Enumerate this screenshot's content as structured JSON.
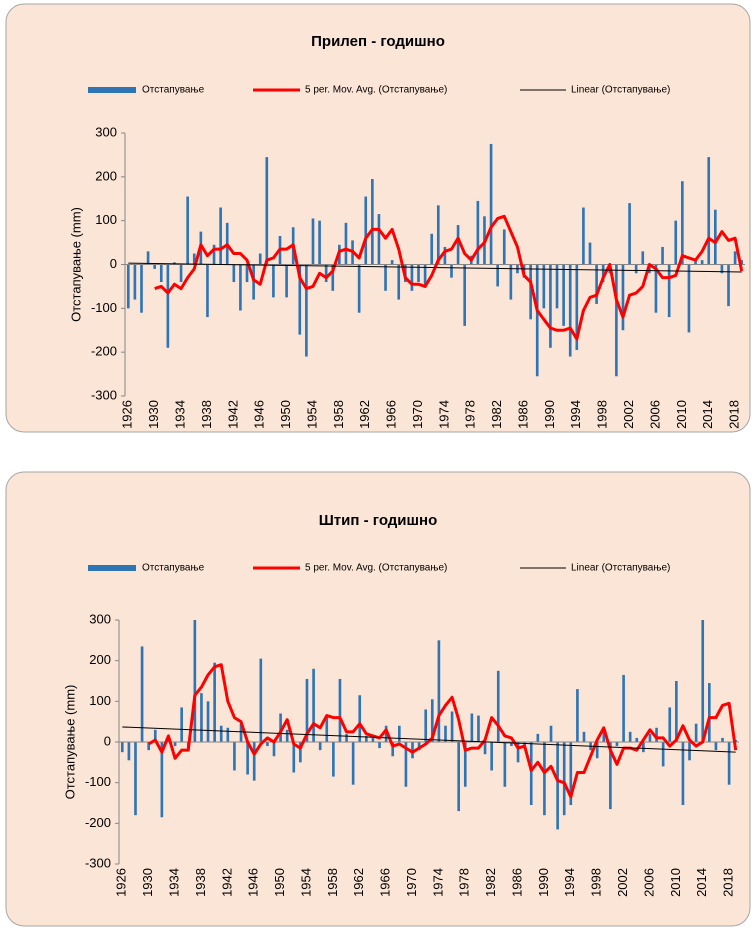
{
  "chart_data": [
    {
      "type": "combo",
      "title": "Прилеп - годишно",
      "y_label": "Отстапување (mm)",
      "categories": [
        "1926",
        null,
        null,
        null,
        "1930",
        null,
        null,
        null,
        "1934",
        null,
        null,
        null,
        "1938",
        null,
        null,
        null,
        "1942",
        null,
        null,
        null,
        "1946",
        null,
        null,
        null,
        "1950",
        null,
        null,
        null,
        "1954",
        null,
        null,
        null,
        "1958",
        null,
        null,
        null,
        "1962",
        null,
        null,
        null,
        "1966",
        null,
        null,
        null,
        "1970",
        null,
        null,
        null,
        "1974",
        null,
        null,
        null,
        "1978",
        null,
        null,
        null,
        "1982",
        null,
        null,
        null,
        "1986",
        null,
        null,
        null,
        "1990",
        null,
        null,
        null,
        "1994",
        null,
        null,
        null,
        "1998",
        null,
        null,
        null,
        "2002",
        null,
        null,
        null,
        "2006",
        null,
        null,
        null,
        "2010",
        null,
        null,
        null,
        "2014",
        null,
        null,
        null,
        "2018",
        null
      ],
      "ylim": [
        -300,
        300
      ],
      "yticks": [
        -300,
        -200,
        -100,
        0,
        100,
        200,
        300
      ],
      "series": [
        {
          "name": "Отстапување",
          "type": "bar",
          "color": "#2e75b6",
          "values": [
            -100,
            -80,
            -110,
            30,
            -10,
            -40,
            -190,
            5,
            -40,
            155,
            25,
            75,
            -120,
            45,
            130,
            95,
            -40,
            -105,
            -40,
            -80,
            25,
            245,
            -75,
            65,
            -75,
            85,
            -160,
            -210,
            105,
            100,
            -40,
            -60,
            45,
            95,
            55,
            -110,
            155,
            195,
            115,
            -60,
            10,
            -80,
            -40,
            -60,
            -40,
            -50,
            70,
            135,
            40,
            -30,
            90,
            -140,
            20,
            145,
            110,
            275,
            -50,
            80,
            -80,
            -20,
            -30,
            -125,
            -255,
            -100,
            -190,
            -100,
            -140,
            -210,
            -195,
            130,
            50,
            -90,
            -40,
            -20,
            -255,
            -150,
            140,
            -20,
            30,
            -20,
            -110,
            40,
            -120,
            100,
            190,
            -155,
            10,
            10,
            245,
            125,
            -20,
            -95,
            30,
            10
          ]
        },
        {
          "name": "5 per. Mov. Avg. (Отстапување)",
          "type": "line",
          "color": "#ff0000",
          "values": [
            null,
            null,
            null,
            null,
            -55,
            -50,
            -65,
            -45,
            -55,
            -30,
            -10,
            45,
            20,
            35,
            35,
            45,
            25,
            25,
            10,
            -35,
            -45,
            10,
            15,
            35,
            35,
            45,
            -30,
            -55,
            -50,
            -20,
            -30,
            -15,
            30,
            35,
            30,
            15,
            60,
            80,
            80,
            60,
            80,
            35,
            -30,
            -45,
            -45,
            -50,
            -25,
            10,
            30,
            35,
            60,
            25,
            10,
            35,
            50,
            85,
            105,
            110,
            75,
            40,
            -25,
            -40,
            -105,
            -125,
            -145,
            -150,
            -150,
            -145,
            -170,
            -105,
            -75,
            -70,
            -30,
            0,
            -80,
            -120,
            -70,
            -65,
            -50,
            0,
            -10,
            -30,
            -30,
            -25,
            20,
            15,
            10,
            30,
            60,
            50,
            75,
            55,
            60,
            -15
          ]
        }
      ],
      "trend": {
        "name": "Linear (Отстапување)",
        "color": "#000000",
        "values": [
          3,
          -17
        ]
      }
    },
    {
      "type": "combo",
      "title": "Штип - годишно",
      "y_label": "Отстапување (mm)",
      "categories": [
        "1926",
        null,
        null,
        null,
        "1930",
        null,
        null,
        null,
        "1934",
        null,
        null,
        null,
        "1938",
        null,
        null,
        null,
        "1942",
        null,
        null,
        null,
        "1946",
        null,
        null,
        null,
        "1950",
        null,
        null,
        null,
        "1954",
        null,
        null,
        null,
        "1958",
        null,
        null,
        null,
        "1962",
        null,
        null,
        null,
        "1966",
        null,
        null,
        null,
        "1970",
        null,
        null,
        null,
        "1974",
        null,
        null,
        null,
        "1978",
        null,
        null,
        null,
        "1982",
        null,
        null,
        null,
        "1986",
        null,
        null,
        null,
        "1990",
        null,
        null,
        null,
        "1994",
        null,
        null,
        null,
        "1998",
        null,
        null,
        null,
        "2002",
        null,
        null,
        null,
        "2006",
        null,
        null,
        null,
        "2010",
        null,
        null,
        null,
        "2014",
        null,
        null,
        null,
        "2018",
        null
      ],
      "ylim": [
        -300,
        300
      ],
      "yticks": [
        -300,
        -200,
        -100,
        0,
        100,
        200,
        300
      ],
      "series": [
        {
          "name": "Отстапување",
          "type": "bar",
          "color": "#2e75b6",
          "values": [
            -25,
            -45,
            -180,
            235,
            -20,
            30,
            -185,
            10,
            -10,
            85,
            -20,
            300,
            120,
            100,
            195,
            40,
            35,
            -70,
            45,
            -80,
            -95,
            205,
            -10,
            -35,
            70,
            30,
            -75,
            -50,
            155,
            180,
            -20,
            65,
            -85,
            155,
            20,
            -105,
            115,
            15,
            10,
            -15,
            40,
            -35,
            40,
            -110,
            -40,
            -20,
            80,
            105,
            250,
            40,
            75,
            -170,
            -110,
            70,
            65,
            -30,
            -70,
            175,
            -110,
            -10,
            -50,
            -10,
            -155,
            20,
            -180,
            40,
            -215,
            -180,
            -155,
            130,
            25,
            -20,
            -40,
            35,
            -165,
            -10,
            165,
            25,
            10,
            -25,
            20,
            35,
            -60,
            85,
            150,
            -155,
            -45,
            45,
            300,
            145,
            -20,
            10,
            -105,
            5
          ]
        },
        {
          "name": "5 per. Mov. Avg. (Отстапување)",
          "type": "line",
          "color": "#ff0000",
          "values": [
            null,
            null,
            null,
            null,
            -5,
            5,
            -25,
            15,
            -40,
            -20,
            -20,
            115,
            135,
            165,
            185,
            190,
            100,
            60,
            50,
            0,
            -30,
            -5,
            10,
            0,
            25,
            55,
            -5,
            -15,
            20,
            45,
            35,
            65,
            60,
            60,
            25,
            25,
            45,
            20,
            15,
            10,
            30,
            -10,
            -5,
            -15,
            -25,
            -15,
            -5,
            10,
            65,
            90,
            110,
            55,
            -20,
            -15,
            -15,
            5,
            60,
            40,
            15,
            10,
            -15,
            -10,
            -70,
            -50,
            -75,
            -60,
            -95,
            -100,
            -135,
            -75,
            -75,
            -35,
            5,
            35,
            -20,
            -55,
            -15,
            -15,
            -20,
            5,
            30,
            10,
            10,
            -10,
            5,
            40,
            5,
            -10,
            0,
            60,
            60,
            90,
            95,
            -20
          ]
        }
      ],
      "trend": {
        "name": "Linear (Отстапување)",
        "color": "#000000",
        "values": [
          37,
          -25
        ]
      }
    }
  ]
}
